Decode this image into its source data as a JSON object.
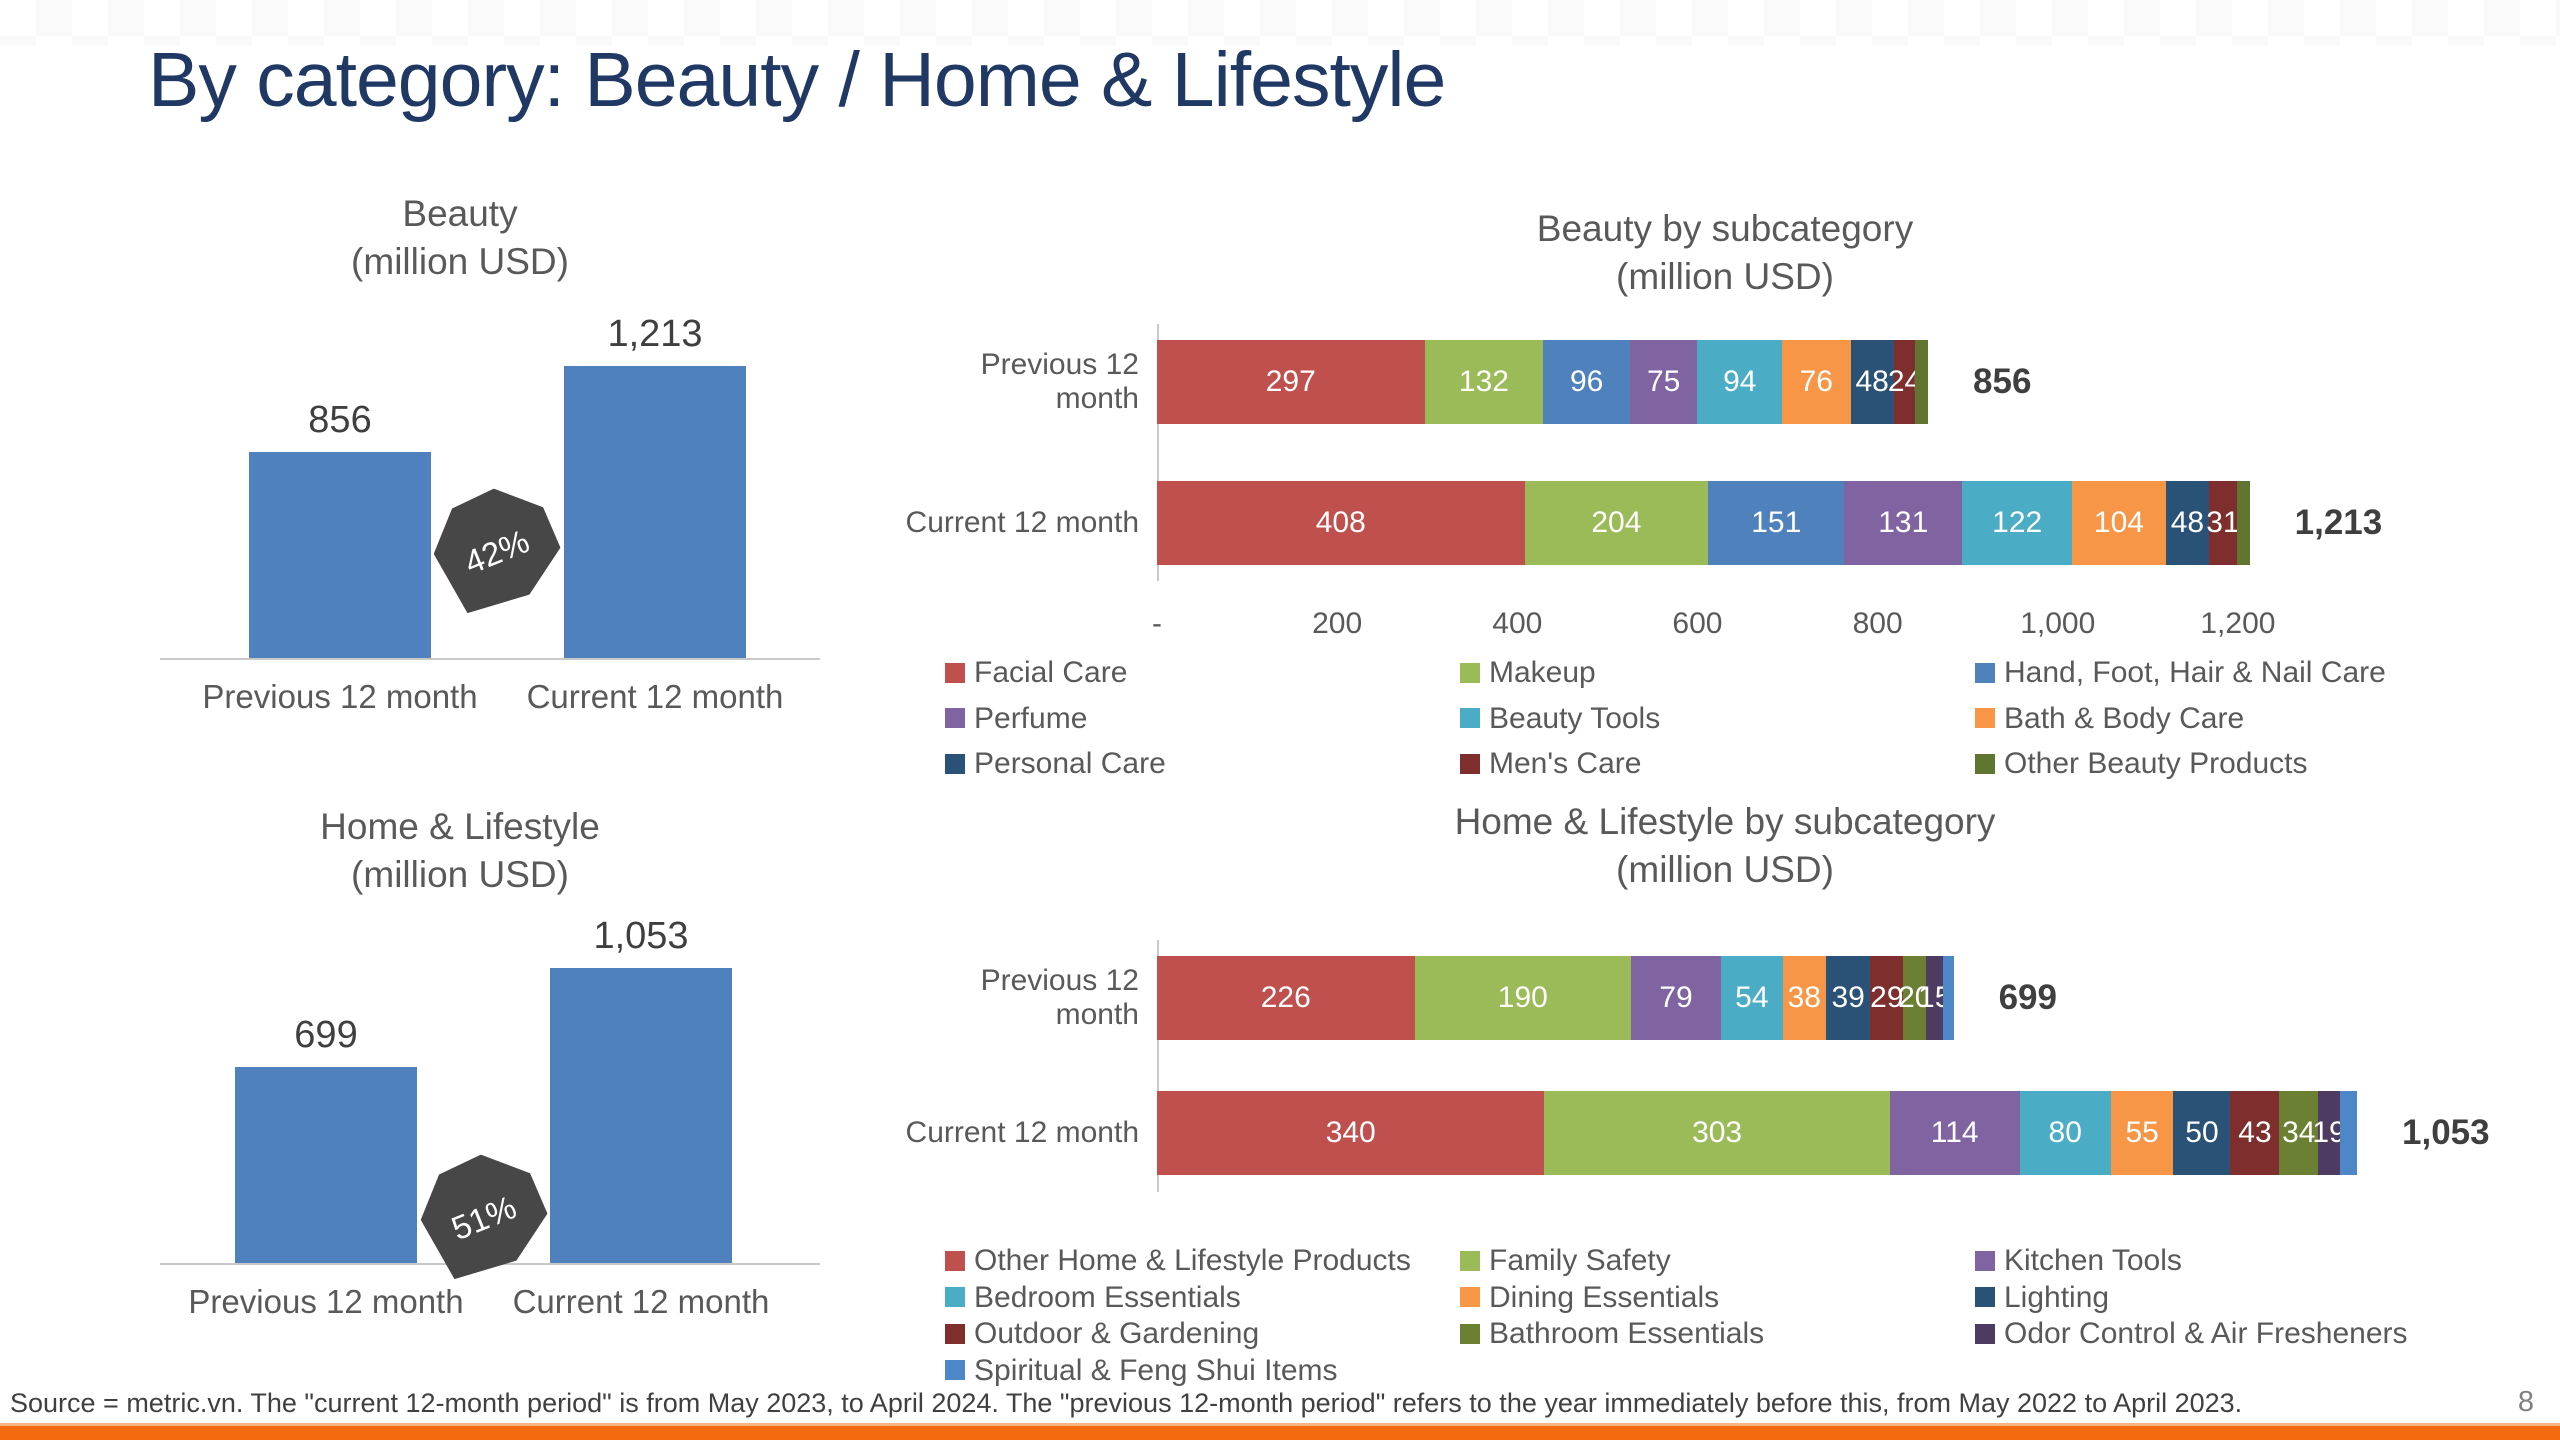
{
  "slide": {
    "title": "By category: Beauty / Home & Lifestyle",
    "page_number": "8",
    "source_note": "Source = metric.vn. The \"current 12-month period\" is from May 2023, to April 2024. The \"previous 12-month period\" refers to the year immediately before this, from May 2022 to April 2023.",
    "title_color": "#1F3864",
    "accent_bar_color": "#F26B0E"
  },
  "chart_data": [
    {
      "id": "beauty_total",
      "type": "bar",
      "title": "Beauty",
      "subtitle": "(million USD)",
      "categories": [
        "Previous 12 month",
        "Current 12 month"
      ],
      "values": [
        856,
        1213
      ],
      "value_labels": [
        "856",
        "1,213"
      ],
      "growth_badge": "42%",
      "bar_color": "#4E81BD",
      "ylim": [
        0,
        1300
      ]
    },
    {
      "id": "beauty_subcategory",
      "type": "stacked-bar-horizontal",
      "title": "Beauty by subcategory",
      "subtitle": "(million USD)",
      "series": [
        "Facial Care",
        "Makeup",
        "Hand, Foot, Hair & Nail Care",
        "Perfume",
        "Beauty Tools",
        "Bath & Body Care",
        "Personal Care",
        "Men's Care",
        "Other Beauty Products"
      ],
      "colors": [
        "#C0504D",
        "#9BBB59",
        "#4F81BD",
        "#8064A2",
        "#4BACC6",
        "#F79646",
        "#2A5277",
        "#7E2E2C",
        "#5F7530"
      ],
      "rows": [
        {
          "label": "Previous 12 month",
          "total": 856,
          "total_label": "856",
          "values": [
            297,
            132,
            96,
            75,
            94,
            76,
            48,
            24,
            14
          ],
          "segment_labels": [
            "297",
            "132",
            "96",
            "75",
            "94",
            "76",
            "48",
            "24",
            ""
          ]
        },
        {
          "label": "Current 12 month",
          "total": 1213,
          "total_label": "1,213",
          "values": [
            408,
            204,
            151,
            131,
            122,
            104,
            48,
            31,
            14
          ],
          "segment_labels": [
            "408",
            "204",
            "151",
            "131",
            "122",
            "104",
            "48",
            "31",
            ""
          ]
        }
      ],
      "axis": {
        "max_units": 1310,
        "ticks": [
          {
            "label": "-",
            "v": 0
          },
          {
            "label": "200",
            "v": 200
          },
          {
            "label": "400",
            "v": 400
          },
          {
            "label": "600",
            "v": 600
          },
          {
            "label": "800",
            "v": 800
          },
          {
            "label": "1,000",
            "v": 1000
          },
          {
            "label": "1,200",
            "v": 1200
          }
        ]
      },
      "legend_position": "bottom"
    },
    {
      "id": "home_total",
      "type": "bar",
      "title": "Home & Lifestyle",
      "subtitle": "(million USD)",
      "categories": [
        "Previous 12 month",
        "Current 12 month"
      ],
      "values": [
        699,
        1053
      ],
      "value_labels": [
        "699",
        "1,053"
      ],
      "growth_badge": "51%",
      "bar_color": "#4E81BD",
      "ylim": [
        0,
        1150
      ]
    },
    {
      "id": "home_subcategory",
      "type": "stacked-bar-horizontal",
      "title": "Home & Lifestyle by subcategory",
      "subtitle": "(million USD)",
      "series": [
        "Other Home & Lifestyle Products",
        "Family Safety",
        "Kitchen Tools",
        "Bedroom Essentials",
        "Dining Essentials",
        "Lighting",
        "Outdoor & Gardening",
        "Bathroom Essentials",
        "Odor Control & Air Fresheners",
        "Spiritual & Feng Shui Items"
      ],
      "colors": [
        "#C0504D",
        "#9BBB59",
        "#8064A2",
        "#4BACC6",
        "#F79646",
        "#2A5277",
        "#7E2E2C",
        "#6B8033",
        "#4D3B62",
        "#4E87C8"
      ],
      "rows": [
        {
          "label": "Previous 12 month",
          "total": 699,
          "total_label": "699",
          "values": [
            226,
            190,
            79,
            54,
            38,
            39,
            29,
            20,
            15,
            9
          ],
          "segment_labels": [
            "226",
            "190",
            "79",
            "54",
            "38",
            "39",
            "29",
            "20",
            "15",
            ""
          ]
        },
        {
          "label": "Current 12 month",
          "total": 1053,
          "total_label": "1,053",
          "values": [
            340,
            303,
            114,
            80,
            55,
            50,
            43,
            34,
            19,
            15
          ],
          "segment_labels": [
            "340",
            "303",
            "114",
            "80",
            "55",
            "50",
            "43",
            "34",
            "19",
            ""
          ]
        }
      ],
      "axis": {
        "max_units": 1053,
        "ticks": []
      },
      "legend_position": "bottom"
    }
  ]
}
